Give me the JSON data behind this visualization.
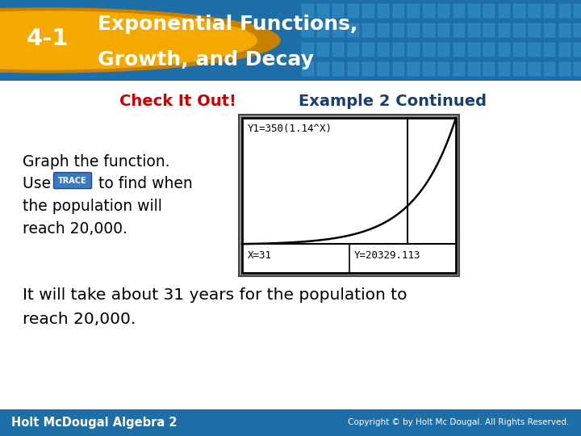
{
  "title_line1": "Exponential Functions,",
  "title_line2": "Growth, and Decay",
  "badge_text": "4-1",
  "section_label": "Check It Out!",
  "section_label2": "Example 2 Continued",
  "body_text1": "Graph the function.",
  "body_text3": "the population will",
  "body_text4": "reach 20,000.",
  "calc_top_label": "Y1=350(1.14^X)",
  "calc_bottom_left": "X=31",
  "calc_bottom_right": "Y=20329.113",
  "conclusion_text1": "It will take about 31 years for the population to",
  "conclusion_text2": "reach 20,000.",
  "footer_left": "Holt McDougal Algebra 2",
  "footer_right": "Copyright © by Holt Mc Dougal. All Rights Reserved.",
  "header_bg_color": "#1e6fa8",
  "badge_bg_color": "#f5a800",
  "badge_border_color": "#c88000",
  "check_color": "#cc0000",
  "example_color": "#1a3e6e",
  "body_text_color": "#000000",
  "footer_bg_color": "#1e6fa8",
  "footer_text_color": "#ffffff",
  "slide_bg_color": "#ffffff",
  "calc_bg": "#ffffff",
  "calc_border": "#000000"
}
